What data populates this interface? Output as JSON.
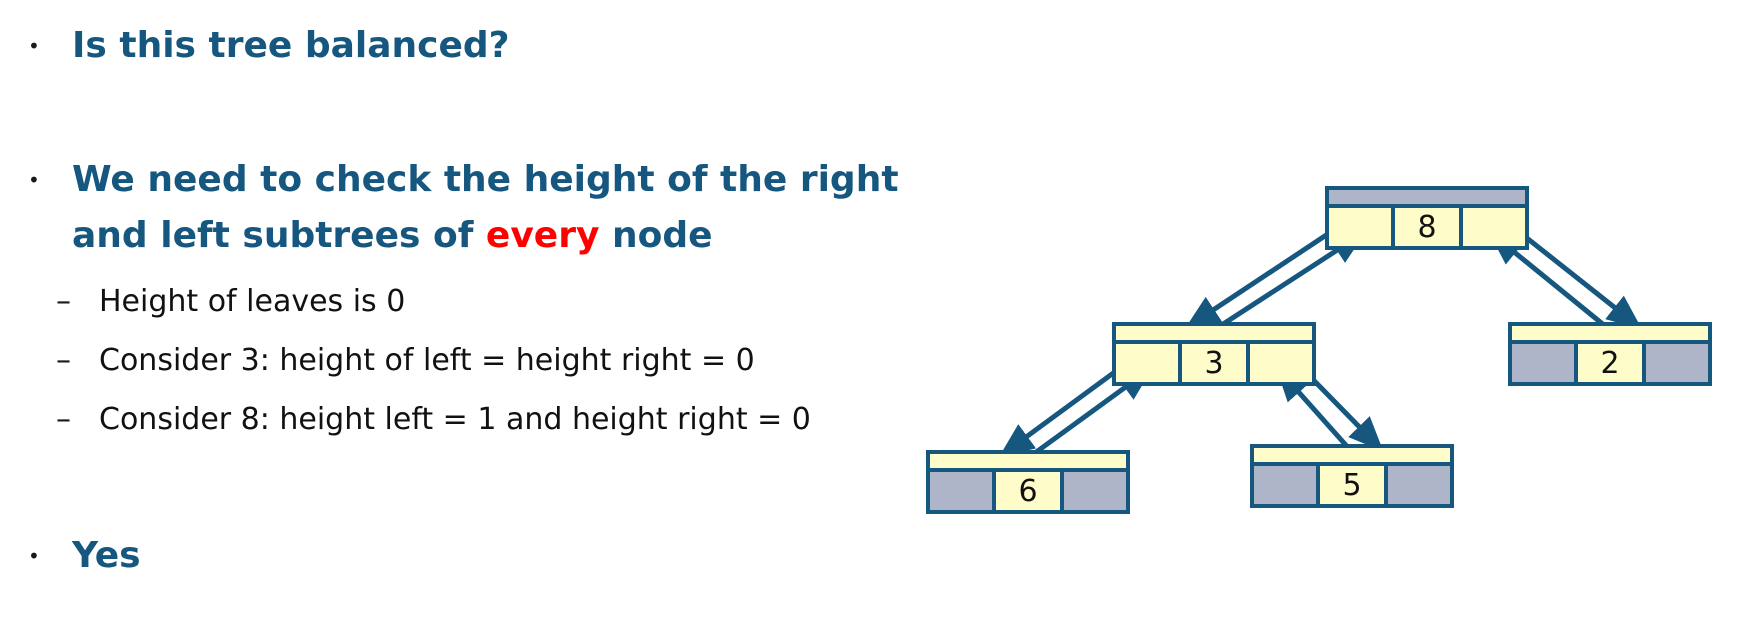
{
  "bullets": [
    {
      "text": "Is this tree balanced?"
    },
    {
      "line1": "We need to check the height of the right",
      "line2_pre": "and left subtrees of ",
      "line2_accent": "every",
      "line2_post": " node"
    },
    {
      "text": "Yes"
    }
  ],
  "sub_bullets": [
    "Height of leaves is 0",
    "Consider 3: height of left = height right = 0",
    "Consider 8: height left = 1 and height right = 0"
  ],
  "colors": {
    "heading": "#15577f",
    "accent": "#ff0000",
    "node_stroke": "#15577f",
    "node_fill": "#fefcc8",
    "node_empty": "#aeb5c8"
  },
  "tree": {
    "nodes": [
      {
        "id": "8",
        "label": "8",
        "left_child": "3",
        "right_child": "2"
      },
      {
        "id": "3",
        "label": "3",
        "left_child": "6",
        "right_child": "5"
      },
      {
        "id": "2",
        "label": "2",
        "left_child": null,
        "right_child": null
      },
      {
        "id": "6",
        "label": "6",
        "left_child": null,
        "right_child": null
      },
      {
        "id": "5",
        "label": "5",
        "left_child": null,
        "right_child": null
      }
    ]
  }
}
